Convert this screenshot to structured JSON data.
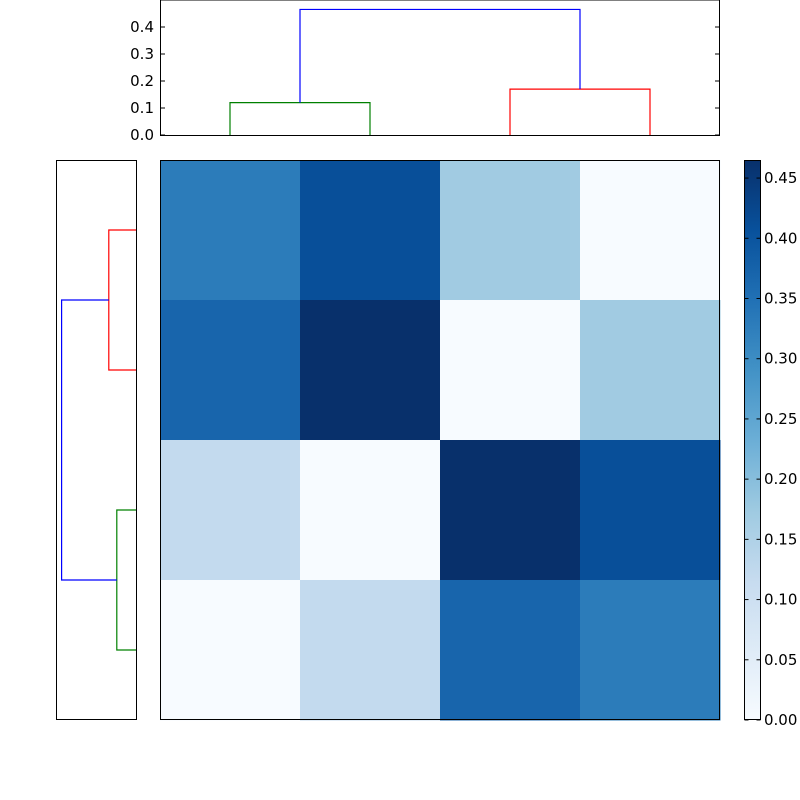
{
  "figure": {
    "type": "clustered heatmap with dendrograms",
    "background": "#ffffff"
  },
  "chart_data": [
    {
      "type": "dendrogram",
      "orientation": "top",
      "ylim": [
        0,
        0.5
      ],
      "yticks": [
        "0.0",
        "0.1",
        "0.2",
        "0.3",
        "0.4"
      ],
      "ytick_values": [
        0.0,
        0.1,
        0.2,
        0.3,
        0.4
      ],
      "leaf_order_count": 4,
      "links": [
        {
          "left_leaf": 0,
          "right_leaf": 1,
          "height": 0.12,
          "color": "#008000"
        },
        {
          "left_leaf": 2,
          "right_leaf": 3,
          "height": 0.17,
          "color": "#ff0000"
        },
        {
          "left_center": 0.5,
          "right_center": 2.5,
          "left_height": 0.12,
          "right_height": 0.17,
          "height": 0.465,
          "color": "#0000ff"
        }
      ]
    },
    {
      "type": "dendrogram",
      "orientation": "left",
      "xlim": [
        0.5,
        0
      ],
      "links": [
        {
          "top_leaf": 0,
          "bottom_leaf": 1,
          "height": 0.17,
          "color": "#ff0000"
        },
        {
          "top_leaf": 2,
          "bottom_leaf": 3,
          "height": 0.12,
          "color": "#008000"
        },
        {
          "top_center": 0.5,
          "bottom_center": 2.5,
          "top_height": 0.17,
          "bottom_height": 0.12,
          "height": 0.465,
          "color": "#0000ff"
        }
      ]
    },
    {
      "type": "heatmap",
      "colormap": "Blues",
      "vmin": 0.0,
      "vmax": 0.465,
      "rows": 4,
      "cols": 4,
      "values": [
        [
          0.33,
          0.41,
          0.17,
          0.0
        ],
        [
          0.37,
          0.465,
          0.0,
          0.17
        ],
        [
          0.12,
          0.0,
          0.465,
          0.41
        ],
        [
          0.0,
          0.12,
          0.37,
          0.33
        ]
      ]
    },
    {
      "type": "colorbar",
      "colormap": "Blues",
      "range": [
        0.0,
        0.465
      ],
      "ticks": [
        "0.00",
        "0.05",
        "0.10",
        "0.15",
        "0.20",
        "0.25",
        "0.30",
        "0.35",
        "0.40",
        "0.45"
      ],
      "tick_values": [
        0.0,
        0.05,
        0.1,
        0.15,
        0.2,
        0.25,
        0.3,
        0.35,
        0.4,
        0.45
      ]
    }
  ]
}
